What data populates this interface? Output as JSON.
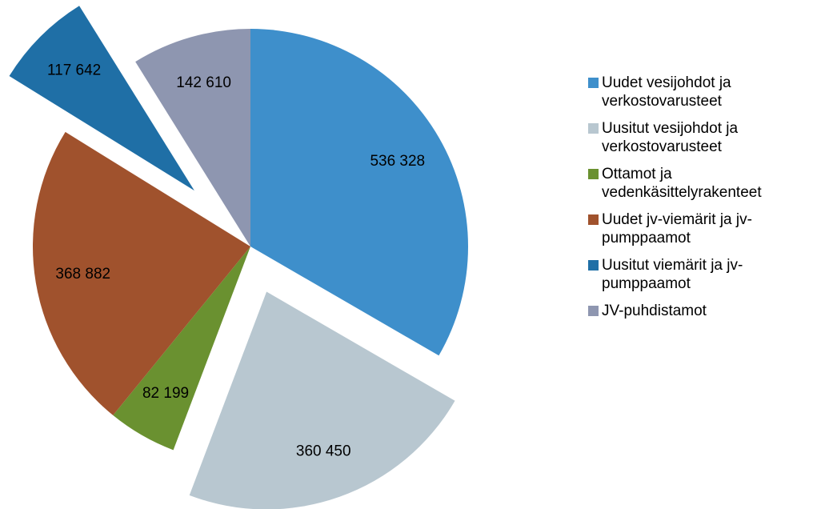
{
  "chart_data": {
    "type": "pie",
    "categories": [
      "Uudet vesijohdot ja verkostovarusteet",
      "Uusitut vesijohdot ja verkostovarusteet",
      "Ottamot ja vedenkäsittelyrakenteet",
      "Uudet jv-viemärit ja jv-pumppaamot",
      "Uusitut viemärit ja jv-pumppaamot",
      "JV-puhdistamot"
    ],
    "values": [
      536328,
      360450,
      82199,
      368882,
      117642,
      142610
    ],
    "value_labels": [
      "536 328",
      "360 450",
      "82 199",
      "368 882",
      "117 642",
      "142 610"
    ],
    "colors": [
      "#3e8fcb",
      "#b8c7d0",
      "#6a9130",
      "#a0522d",
      "#1f6fa6",
      "#8e96b0"
    ],
    "legend": "right"
  }
}
